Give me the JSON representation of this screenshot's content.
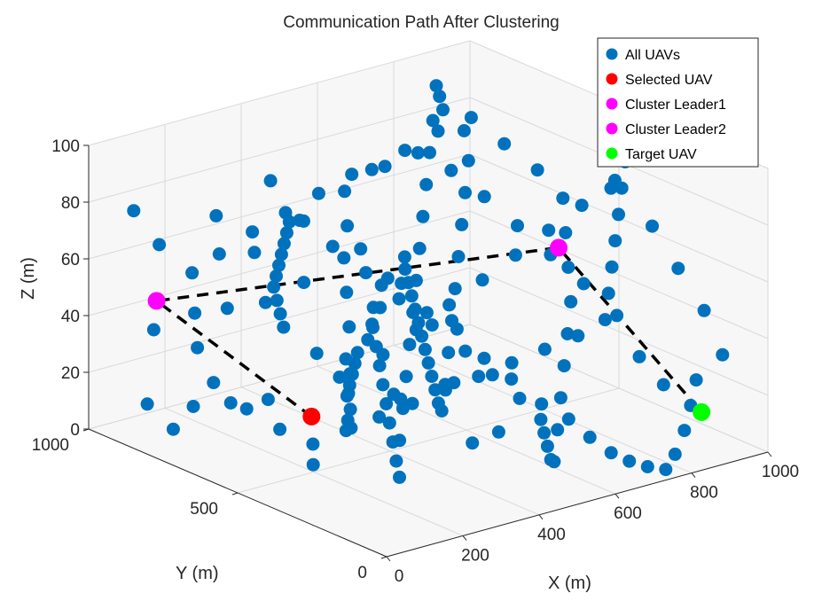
{
  "chart_data": {
    "type": "scatter",
    "title": "Communication Path After Clustering",
    "xlabel": "X (m)",
    "ylabel": "Y (m)",
    "zlabel": "Z (m)",
    "xlim": [
      0,
      1000
    ],
    "ylim": [
      0,
      1000
    ],
    "zlim": [
      0,
      100
    ],
    "x_ticks": [
      "0",
      "200",
      "400",
      "600",
      "800",
      "1000"
    ],
    "y_ticks": [
      "0",
      "500",
      "1000"
    ],
    "z_ticks": [
      "0",
      "20",
      "40",
      "60",
      "80",
      "100"
    ],
    "grid": true,
    "legend_position": "top-right",
    "colors": {
      "all": "#0072bd",
      "selected": "#ff0000",
      "leader1": "#ff00ff",
      "leader2": "#ff00ff",
      "target": "#00ff00",
      "path": "#000000"
    },
    "legend": [
      "All UAVs",
      "Selected UAV",
      "Cluster Leader1",
      "Cluster Leader2",
      "Target UAV"
    ],
    "series": [
      {
        "name": "All UAVs",
        "points": [
          [
            350,
            160,
            20
          ],
          [
            380,
            110,
            25
          ],
          [
            300,
            360,
            30
          ],
          [
            270,
            120,
            46
          ],
          [
            190,
            200,
            12
          ],
          [
            240,
            260,
            35
          ],
          [
            120,
            400,
            10
          ],
          [
            150,
            350,
            42
          ],
          [
            80,
            500,
            30
          ],
          [
            60,
            600,
            25
          ],
          [
            40,
            700,
            20
          ],
          [
            50,
            780,
            8
          ],
          [
            60,
            880,
            12
          ],
          [
            30,
            820,
            42
          ],
          [
            90,
            650,
            55
          ],
          [
            120,
            560,
            60
          ],
          [
            150,
            470,
            70
          ],
          [
            130,
            610,
            75
          ],
          [
            100,
            700,
            85
          ],
          [
            60,
            840,
            70
          ],
          [
            40,
            900,
            80
          ],
          [
            180,
            620,
            98
          ],
          [
            220,
            560,
            85
          ],
          [
            260,
            420,
            80
          ],
          [
            300,
            380,
            70
          ],
          [
            340,
            300,
            60
          ],
          [
            380,
            250,
            55
          ],
          [
            420,
            210,
            45
          ],
          [
            460,
            170,
            38
          ],
          [
            500,
            120,
            30
          ],
          [
            540,
            80,
            25
          ],
          [
            580,
            60,
            18
          ],
          [
            620,
            40,
            12
          ],
          [
            660,
            30,
            8
          ],
          [
            700,
            20,
            5
          ],
          [
            740,
            10,
            3
          ],
          [
            780,
            30,
            6
          ],
          [
            820,
            50,
            12
          ],
          [
            860,
            80,
            18
          ],
          [
            820,
            120,
            25
          ],
          [
            780,
            150,
            35
          ],
          [
            760,
            200,
            48
          ],
          [
            720,
            260,
            58
          ],
          [
            680,
            320,
            67
          ],
          [
            640,
            380,
            76
          ],
          [
            600,
            440,
            85
          ],
          [
            560,
            500,
            93
          ],
          [
            520,
            560,
            98
          ],
          [
            480,
            620,
            92
          ],
          [
            440,
            680,
            88
          ],
          [
            400,
            740,
            80
          ],
          [
            360,
            800,
            72
          ],
          [
            320,
            860,
            64
          ],
          [
            280,
            920,
            55
          ],
          [
            240,
            960,
            48
          ],
          [
            200,
            900,
            38
          ],
          [
            160,
            840,
            30
          ],
          [
            140,
            760,
            22
          ],
          [
            180,
            700,
            14
          ],
          [
            220,
            640,
            8
          ],
          [
            260,
            580,
            4
          ],
          [
            300,
            520,
            10
          ],
          [
            340,
            460,
            16
          ],
          [
            380,
            400,
            22
          ],
          [
            420,
            340,
            28
          ],
          [
            460,
            280,
            34
          ],
          [
            500,
            220,
            40
          ],
          [
            540,
            160,
            46
          ],
          [
            580,
            100,
            52
          ],
          [
            620,
            60,
            58
          ],
          [
            660,
            100,
            64
          ],
          [
            700,
            140,
            70
          ],
          [
            740,
            180,
            76
          ],
          [
            780,
            220,
            82
          ],
          [
            820,
            260,
            88
          ],
          [
            860,
            300,
            94
          ],
          [
            880,
            360,
            84
          ],
          [
            840,
            420,
            74
          ],
          [
            800,
            480,
            64
          ],
          [
            760,
            540,
            54
          ],
          [
            720,
            600,
            44
          ],
          [
            680,
            660,
            34
          ],
          [
            640,
            720,
            24
          ],
          [
            600,
            780,
            14
          ],
          [
            560,
            840,
            6
          ],
          [
            520,
            900,
            12
          ],
          [
            480,
            960,
            20
          ],
          [
            440,
            920,
            28
          ],
          [
            400,
            880,
            36
          ],
          [
            360,
            840,
            44
          ],
          [
            320,
            780,
            52
          ],
          [
            280,
            720,
            60
          ],
          [
            240,
            660,
            68
          ],
          [
            200,
            600,
            76
          ],
          [
            160,
            540,
            84
          ],
          [
            120,
            480,
            92
          ],
          [
            100,
            420,
            96
          ],
          [
            140,
            360,
            88
          ],
          [
            180,
            300,
            80
          ],
          [
            220,
            240,
            72
          ],
          [
            260,
            180,
            64
          ],
          [
            300,
            120,
            56
          ],
          [
            340,
            80,
            48
          ],
          [
            380,
            40,
            40
          ],
          [
            420,
            20,
            32
          ],
          [
            460,
            60,
            24
          ],
          [
            500,
            100,
            16
          ],
          [
            540,
            140,
            8
          ],
          [
            580,
            180,
            4
          ],
          [
            620,
            220,
            12
          ],
          [
            660,
            260,
            20
          ],
          [
            700,
            300,
            28
          ],
          [
            740,
            340,
            36
          ],
          [
            780,
            380,
            44
          ],
          [
            820,
            440,
            52
          ],
          [
            860,
            500,
            60
          ],
          [
            900,
            560,
            68
          ],
          [
            880,
            620,
            76
          ],
          [
            840,
            680,
            84
          ],
          [
            800,
            740,
            92
          ],
          [
            760,
            800,
            86
          ],
          [
            720,
            860,
            78
          ],
          [
            680,
            920,
            70
          ],
          [
            640,
            960,
            62
          ],
          [
            600,
            900,
            54
          ],
          [
            560,
            860,
            46
          ],
          [
            520,
            800,
            38
          ],
          [
            480,
            740,
            30
          ],
          [
            440,
            700,
            22
          ],
          [
            400,
            640,
            14
          ],
          [
            360,
            580,
            6
          ],
          [
            320,
            540,
            12
          ],
          [
            280,
            480,
            20
          ],
          [
            240,
            440,
            28
          ],
          [
            200,
            380,
            36
          ],
          [
            160,
            320,
            44
          ],
          [
            120,
            260,
            52
          ],
          [
            80,
            200,
            60
          ],
          [
            60,
            140,
            68
          ],
          [
            40,
            100,
            76
          ],
          [
            30,
            60,
            84
          ],
          [
            70,
            40,
            92
          ],
          [
            110,
            80,
            98
          ],
          [
            150,
            130,
            90
          ],
          [
            190,
            170,
            82
          ],
          [
            230,
            210,
            74
          ],
          [
            270,
            250,
            66
          ],
          [
            310,
            290,
            58
          ],
          [
            350,
            330,
            50
          ],
          [
            390,
            370,
            42
          ],
          [
            430,
            410,
            34
          ],
          [
            470,
            450,
            26
          ],
          [
            510,
            490,
            18
          ],
          [
            550,
            530,
            10
          ],
          [
            590,
            570,
            4
          ],
          [
            630,
            610,
            10
          ],
          [
            670,
            650,
            18
          ],
          [
            710,
            690,
            26
          ],
          [
            750,
            730,
            34
          ],
          [
            790,
            770,
            42
          ],
          [
            830,
            810,
            50
          ],
          [
            870,
            850,
            58
          ],
          [
            910,
            890,
            66
          ],
          [
            930,
            930,
            74
          ],
          [
            890,
            950,
            82
          ],
          [
            850,
            910,
            90
          ],
          [
            810,
            870,
            97
          ],
          [
            770,
            830,
            88
          ],
          [
            730,
            790,
            80
          ],
          [
            690,
            750,
            72
          ],
          [
            650,
            710,
            64
          ],
          [
            610,
            670,
            56
          ],
          [
            570,
            630,
            48
          ],
          [
            530,
            590,
            40
          ],
          [
            490,
            550,
            32
          ],
          [
            450,
            510,
            24
          ],
          [
            410,
            470,
            16
          ],
          [
            370,
            430,
            8
          ],
          [
            330,
            390,
            4
          ],
          [
            290,
            350,
            14
          ],
          [
            250,
            310,
            24
          ],
          [
            210,
            270,
            34
          ],
          [
            170,
            230,
            44
          ],
          [
            130,
            190,
            54
          ],
          [
            90,
            150,
            64
          ],
          [
            50,
            110,
            74
          ],
          [
            20,
            70,
            84
          ],
          [
            10,
            30,
            94
          ],
          [
            950,
            150,
            45
          ],
          [
            960,
            250,
            55
          ],
          [
            970,
            350,
            65
          ],
          [
            940,
            450,
            75
          ],
          [
            920,
            50,
            35
          ],
          [
            890,
            100,
            25
          ]
        ]
      },
      {
        "name": "Selected UAV",
        "points": [
          [
            350,
            700,
            5
          ]
        ]
      },
      {
        "name": "Cluster Leader1",
        "points": [
          [
            100,
            900,
            46
          ]
        ]
      },
      {
        "name": "Cluster Leader2",
        "points": [
          [
            920,
            600,
            48
          ]
        ]
      },
      {
        "name": "Target UAV",
        "points": [
          [
            990,
            210,
            5
          ]
        ]
      }
    ],
    "path": [
      [
        350,
        700,
        5
      ],
      [
        100,
        900,
        46
      ],
      [
        920,
        600,
        48
      ],
      [
        990,
        210,
        5
      ]
    ]
  }
}
